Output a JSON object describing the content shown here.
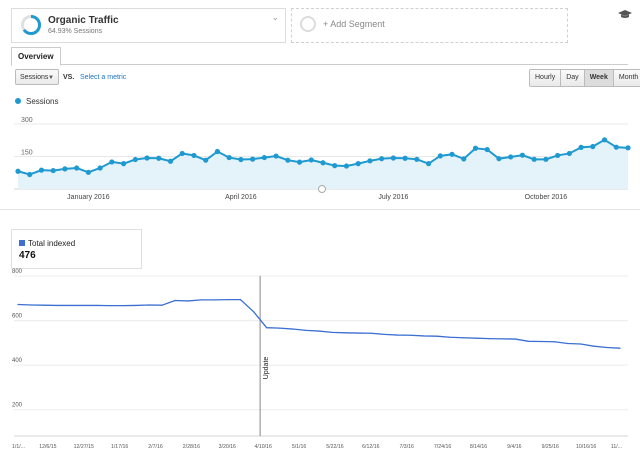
{
  "segment": {
    "title": "Organic Traffic",
    "subtitle": "64.93% Sessions",
    "add_label": "+ Add Segment",
    "ring_color": "#1f9ad1"
  },
  "tabs": {
    "overview": "Overview"
  },
  "controls": {
    "metric": "Sessions",
    "vs": "VS.",
    "select_metric": "Select a metric",
    "ranges": [
      "Hourly",
      "Day",
      "Week",
      "Month"
    ],
    "active_range": "Week"
  },
  "sessions_chart": {
    "legend": "Sessions",
    "color": "#1f9ad1"
  },
  "indexed_card": {
    "legend": "Total indexed",
    "value": "476",
    "color": "#3b6fd1"
  },
  "chart_data": [
    {
      "type": "area",
      "series": [
        {
          "name": "Sessions",
          "values": [
            82,
            67,
            87,
            85,
            93,
            97,
            77,
            97,
            125,
            117,
            136,
            143,
            142,
            128,
            164,
            155,
            133,
            173,
            145,
            136,
            138,
            145,
            152,
            133,
            124,
            134,
            121,
            108,
            106,
            117,
            130,
            140,
            143,
            142,
            137,
            117,
            153,
            160,
            139,
            188,
            182,
            140,
            148,
            156,
            137,
            137,
            155,
            164,
            192,
            196,
            227,
            193,
            190
          ]
        }
      ],
      "ylim": [
        0,
        360
      ],
      "yticks": [
        150,
        300
      ],
      "xticks": [
        "January 2016",
        "April 2016",
        "July 2016",
        "October 2016"
      ],
      "grid": true
    },
    {
      "type": "line",
      "series": [
        {
          "name": "Total indexed",
          "values": [
            672,
            670,
            669,
            668,
            668,
            668,
            668,
            667,
            667,
            668,
            670,
            669,
            690,
            688,
            693,
            693,
            694,
            694,
            640,
            568,
            566,
            562,
            556,
            553,
            547,
            545,
            544,
            543,
            538,
            535,
            534,
            531,
            530,
            525,
            523,
            521,
            519,
            518,
            517,
            507,
            506,
            505,
            497,
            495,
            485,
            479,
            476
          ]
        }
      ],
      "ylim": [
        100,
        800
      ],
      "yticks": [
        200,
        400,
        600,
        800
      ],
      "xticks": [
        "1/1/...",
        "12/6/15",
        "12/27/15",
        "1/17/16",
        "2/7/16",
        "2/28/16",
        "3/20/16",
        "4/10/16",
        "5/1/16",
        "5/22/16",
        "6/12/16",
        "7/3/16",
        "7/24/16",
        "8/14/16",
        "9/4/16",
        "9/25/16",
        "10/16/16",
        "11/..."
      ],
      "annotation": "Update"
    }
  ]
}
